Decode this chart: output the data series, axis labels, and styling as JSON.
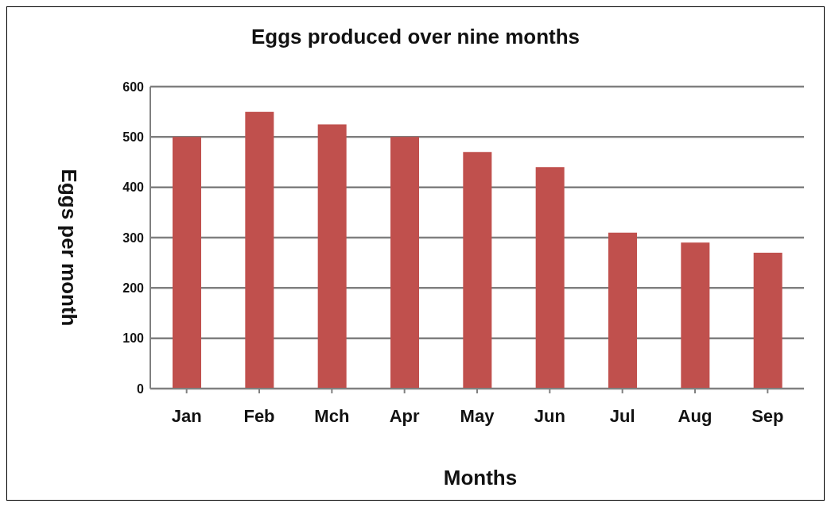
{
  "chart_data": {
    "type": "bar",
    "title": "Eggs produced over nine months",
    "xlabel": "Months",
    "ylabel": "Eggs per month",
    "categories": [
      "Jan",
      "Feb",
      "Mch",
      "Apr",
      "May",
      "Jun",
      "Jul",
      "Aug",
      "Sep"
    ],
    "values": [
      500,
      550,
      525,
      500,
      470,
      440,
      310,
      290,
      270
    ],
    "color": "#c0504d",
    "ylim": [
      0,
      600
    ],
    "yticks": [
      0,
      100,
      200,
      300,
      400,
      500,
      600
    ],
    "grid": "y"
  }
}
